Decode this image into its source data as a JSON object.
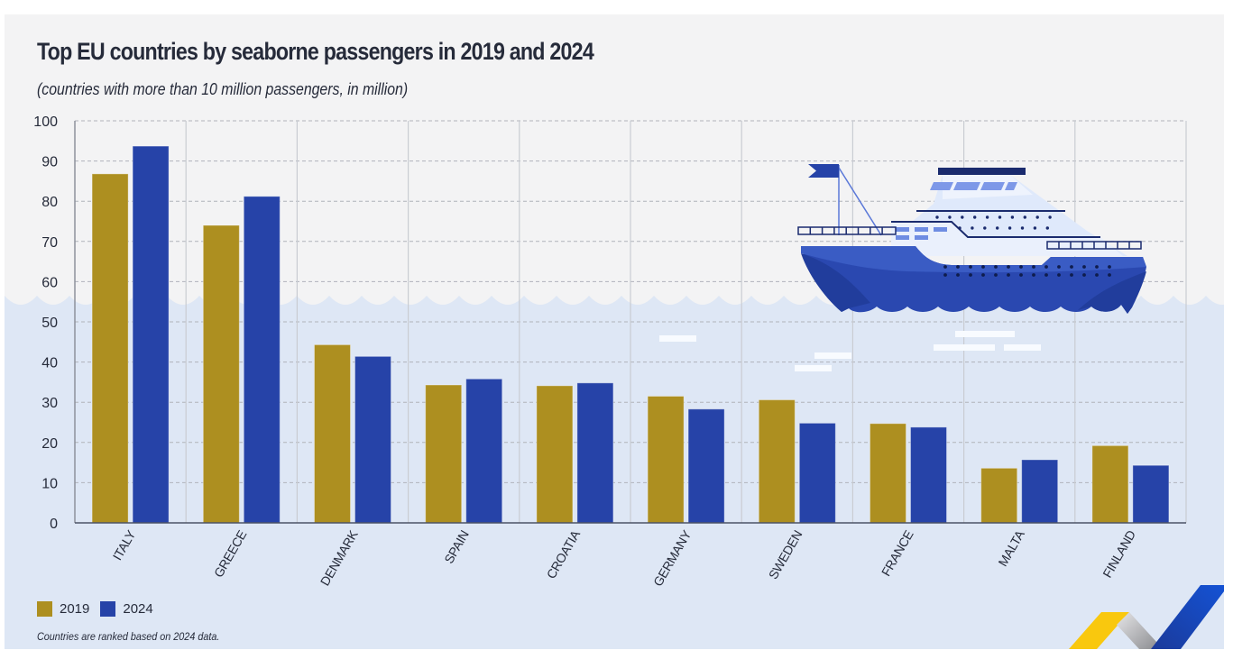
{
  "colors": {
    "series_2019": "#ad8f20",
    "series_2024": "#2643a8",
    "sky": "#f3f3f4",
    "water": "#dee7f5",
    "text": "#262b3a"
  },
  "chart_data": {
    "type": "bar",
    "title": "Top EU countries by seaborne passengers in 2019 and 2024",
    "subtitle": "(countries with more than 10 million passengers, in million)",
    "xlabel": "",
    "ylabel": "",
    "ylim": [
      0,
      100
    ],
    "yticks": [
      0,
      10,
      20,
      30,
      40,
      50,
      60,
      70,
      80,
      90,
      100
    ],
    "grid": true,
    "legend_position": "bottom-left",
    "categories": [
      "ITALY",
      "GREECE",
      "DENMARK",
      "SPAIN",
      "CROATIA",
      "GERMANY",
      "SWEDEN",
      "FRANCE",
      "MALTA",
      "FINLAND"
    ],
    "series": [
      {
        "name": "2019",
        "values": [
          86.8,
          74.0,
          44.3,
          34.3,
          34.1,
          31.5,
          30.6,
          24.7,
          13.6,
          19.2
        ]
      },
      {
        "name": "2024",
        "values": [
          93.7,
          81.2,
          41.4,
          35.8,
          34.8,
          28.3,
          24.8,
          23.8,
          15.7,
          14.3
        ]
      }
    ],
    "note": "Countries are ranked based on 2024 data."
  },
  "legend": [
    {
      "label": "2019"
    },
    {
      "label": "2024"
    }
  ],
  "decoration": {
    "illustration": "cruise-ship-on-waves",
    "logo": "eurostat-chevron-logo"
  }
}
